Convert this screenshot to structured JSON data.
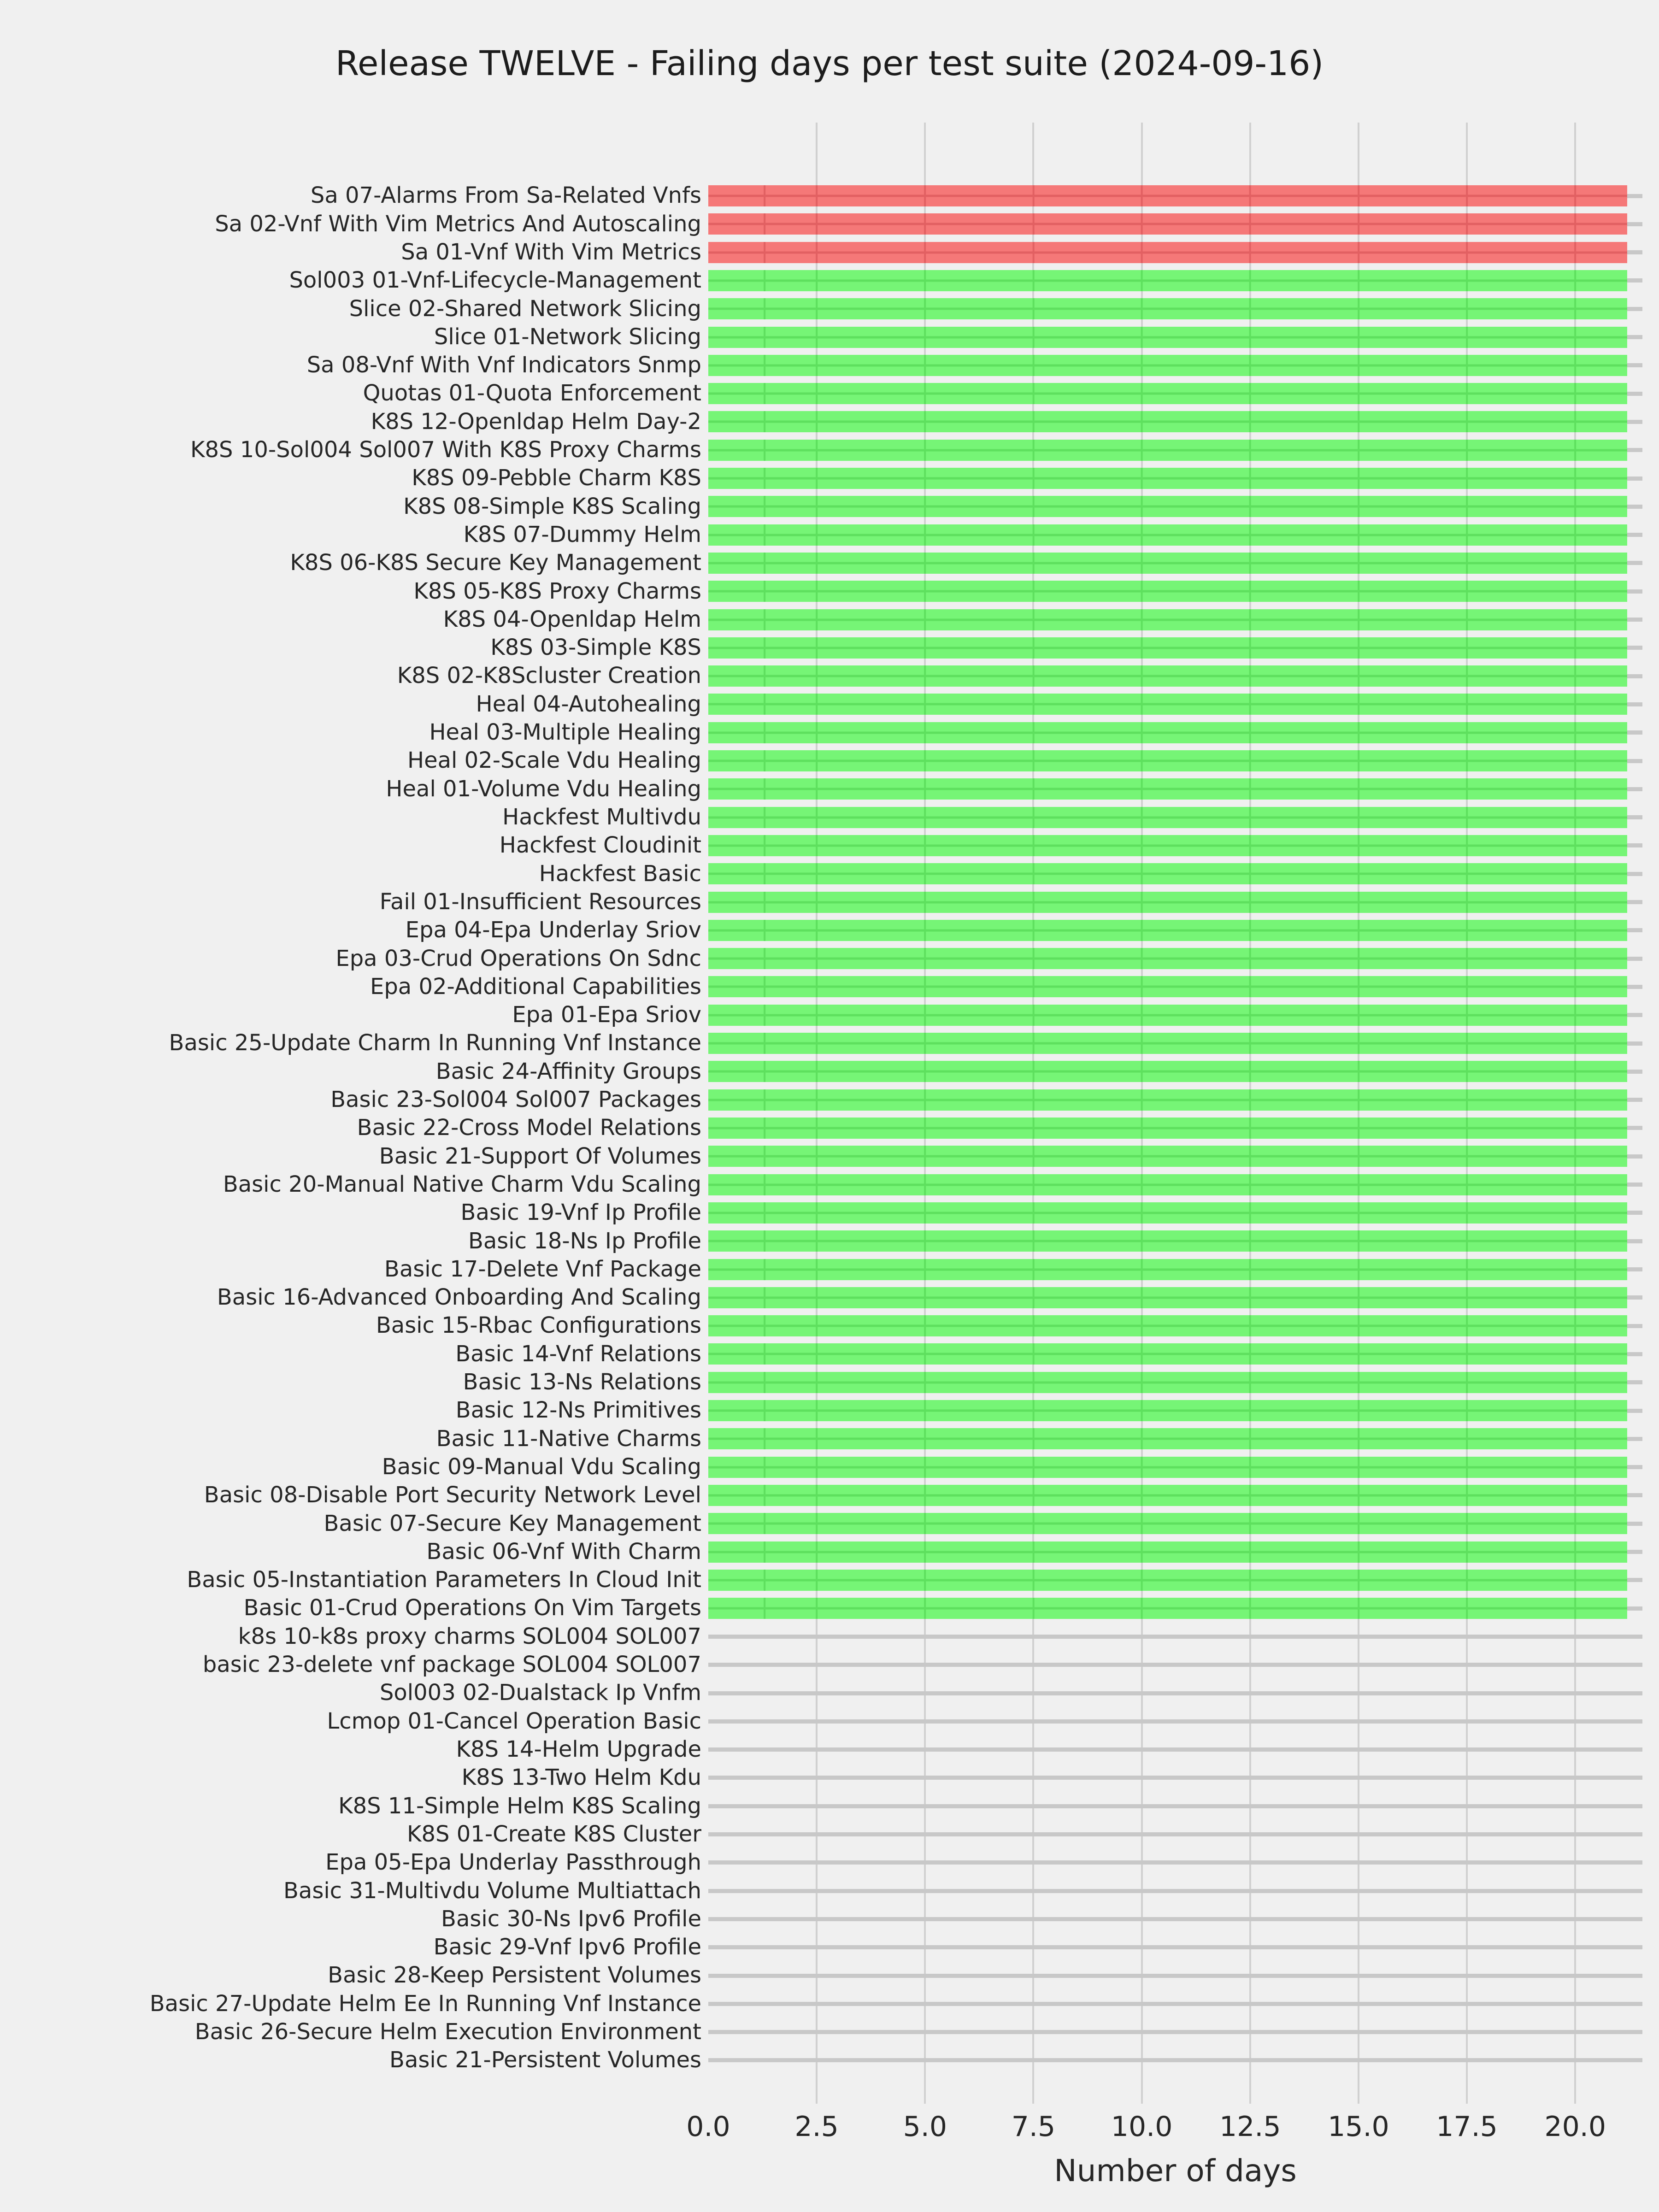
{
  "chart_data": {
    "type": "bar",
    "orientation": "horizontal",
    "title": "Release TWELVE - Failing days per test suite (2024-09-16)",
    "xlabel": "Number of days",
    "ylabel": "",
    "xlim": [
      0,
      21.55
    ],
    "xticks": [
      0.0,
      2.5,
      5.0,
      7.5,
      10.0,
      12.5,
      15.0,
      17.5,
      20.0
    ],
    "xtick_labels": [
      "0.0",
      "2.5",
      "5.0",
      "7.5",
      "10.0",
      "12.5",
      "15.0",
      "17.5",
      "20.0"
    ],
    "grid": true,
    "legend": "none",
    "colors": {
      "failing_bar": "#f57878",
      "failing_bar_edge": "#e26062",
      "passing_bar": "#76f576",
      "passing_bar_edge": "#5ee05e",
      "background": "#f0f0f0",
      "vertical_gridline": "#d0d0d0",
      "horizontal_gridline": "#c8c8c8",
      "text": "#262626",
      "title_text": "#1c1c1c"
    },
    "suites": [
      {
        "label": "Sa 07-Alarms From Sa-Related Vnfs",
        "days": 21.2,
        "color": "red"
      },
      {
        "label": "Sa 02-Vnf With Vim Metrics And Autoscaling",
        "days": 21.2,
        "color": "red"
      },
      {
        "label": "Sa 01-Vnf With Vim Metrics",
        "days": 21.2,
        "color": "red"
      },
      {
        "label": "Sol003 01-Vnf-Lifecycle-Management",
        "days": 21.2,
        "color": "green"
      },
      {
        "label": "Slice 02-Shared Network Slicing",
        "days": 21.2,
        "color": "green"
      },
      {
        "label": "Slice 01-Network Slicing",
        "days": 21.2,
        "color": "green"
      },
      {
        "label": "Sa 08-Vnf With Vnf Indicators Snmp",
        "days": 21.2,
        "color": "green"
      },
      {
        "label": "Quotas 01-Quota Enforcement",
        "days": 21.2,
        "color": "green"
      },
      {
        "label": "K8S 12-Openldap Helm Day-2",
        "days": 21.2,
        "color": "green"
      },
      {
        "label": "K8S 10-Sol004 Sol007 With K8S Proxy Charms",
        "days": 21.2,
        "color": "green"
      },
      {
        "label": "K8S 09-Pebble Charm K8S",
        "days": 21.2,
        "color": "green"
      },
      {
        "label": "K8S 08-Simple K8S Scaling",
        "days": 21.2,
        "color": "green"
      },
      {
        "label": "K8S 07-Dummy Helm",
        "days": 21.2,
        "color": "green"
      },
      {
        "label": "K8S 06-K8S Secure Key Management",
        "days": 21.2,
        "color": "green"
      },
      {
        "label": "K8S 05-K8S Proxy Charms",
        "days": 21.2,
        "color": "green"
      },
      {
        "label": "K8S 04-Openldap Helm",
        "days": 21.2,
        "color": "green"
      },
      {
        "label": "K8S 03-Simple K8S",
        "days": 21.2,
        "color": "green"
      },
      {
        "label": "K8S 02-K8Scluster Creation",
        "days": 21.2,
        "color": "green"
      },
      {
        "label": "Heal 04-Autohealing",
        "days": 21.2,
        "color": "green"
      },
      {
        "label": "Heal 03-Multiple Healing",
        "days": 21.2,
        "color": "green"
      },
      {
        "label": "Heal 02-Scale Vdu Healing",
        "days": 21.2,
        "color": "green"
      },
      {
        "label": "Heal 01-Volume Vdu Healing",
        "days": 21.2,
        "color": "green"
      },
      {
        "label": "Hackfest Multivdu",
        "days": 21.2,
        "color": "green"
      },
      {
        "label": "Hackfest Cloudinit",
        "days": 21.2,
        "color": "green"
      },
      {
        "label": "Hackfest Basic",
        "days": 21.2,
        "color": "green"
      },
      {
        "label": "Fail 01-Insufficient Resources",
        "days": 21.2,
        "color": "green"
      },
      {
        "label": "Epa 04-Epa Underlay Sriov",
        "days": 21.2,
        "color": "green"
      },
      {
        "label": "Epa 03-Crud Operations On Sdnc",
        "days": 21.2,
        "color": "green"
      },
      {
        "label": "Epa 02-Additional Capabilities",
        "days": 21.2,
        "color": "green"
      },
      {
        "label": "Epa 01-Epa Sriov",
        "days": 21.2,
        "color": "green"
      },
      {
        "label": "Basic 25-Update Charm In Running Vnf Instance",
        "days": 21.2,
        "color": "green"
      },
      {
        "label": "Basic 24-Affinity Groups",
        "days": 21.2,
        "color": "green"
      },
      {
        "label": "Basic 23-Sol004 Sol007 Packages",
        "days": 21.2,
        "color": "green"
      },
      {
        "label": "Basic 22-Cross Model Relations",
        "days": 21.2,
        "color": "green"
      },
      {
        "label": "Basic 21-Support Of Volumes",
        "days": 21.2,
        "color": "green"
      },
      {
        "label": "Basic 20-Manual Native Charm Vdu Scaling",
        "days": 21.2,
        "color": "green"
      },
      {
        "label": "Basic 19-Vnf Ip Profile",
        "days": 21.2,
        "color": "green"
      },
      {
        "label": "Basic 18-Ns Ip Profile",
        "days": 21.2,
        "color": "green"
      },
      {
        "label": "Basic 17-Delete Vnf Package",
        "days": 21.2,
        "color": "green"
      },
      {
        "label": "Basic 16-Advanced Onboarding And Scaling",
        "days": 21.2,
        "color": "green"
      },
      {
        "label": "Basic 15-Rbac Configurations",
        "days": 21.2,
        "color": "green"
      },
      {
        "label": "Basic 14-Vnf Relations",
        "days": 21.2,
        "color": "green"
      },
      {
        "label": "Basic 13-Ns Relations",
        "days": 21.2,
        "color": "green"
      },
      {
        "label": "Basic 12-Ns Primitives",
        "days": 21.2,
        "color": "green"
      },
      {
        "label": "Basic 11-Native Charms",
        "days": 21.2,
        "color": "green"
      },
      {
        "label": "Basic 09-Manual Vdu Scaling",
        "days": 21.2,
        "color": "green"
      },
      {
        "label": "Basic 08-Disable Port Security Network Level",
        "days": 21.2,
        "color": "green"
      },
      {
        "label": "Basic 07-Secure Key Management",
        "days": 21.2,
        "color": "green"
      },
      {
        "label": "Basic 06-Vnf With Charm",
        "days": 21.2,
        "color": "green"
      },
      {
        "label": "Basic 05-Instantiation Parameters In Cloud Init",
        "days": 21.2,
        "color": "green"
      },
      {
        "label": "Basic 01-Crud Operations On Vim Targets",
        "days": 21.2,
        "color": "green"
      },
      {
        "label": "k8s 10-k8s proxy charms SOL004 SOL007",
        "days": 0,
        "color": "none"
      },
      {
        "label": "basic 23-delete vnf package SOL004 SOL007",
        "days": 0,
        "color": "none"
      },
      {
        "label": "Sol003 02-Dualstack Ip Vnfm",
        "days": 0,
        "color": "none"
      },
      {
        "label": "Lcmop 01-Cancel Operation Basic",
        "days": 0,
        "color": "none"
      },
      {
        "label": "K8S 14-Helm Upgrade",
        "days": 0,
        "color": "none"
      },
      {
        "label": "K8S 13-Two Helm Kdu",
        "days": 0,
        "color": "none"
      },
      {
        "label": "K8S 11-Simple Helm K8S Scaling",
        "days": 0,
        "color": "none"
      },
      {
        "label": "K8S 01-Create K8S Cluster",
        "days": 0,
        "color": "none"
      },
      {
        "label": "Epa 05-Epa Underlay Passthrough",
        "days": 0,
        "color": "none"
      },
      {
        "label": "Basic 31-Multivdu Volume Multiattach",
        "days": 0,
        "color": "none"
      },
      {
        "label": "Basic 30-Ns Ipv6 Profile",
        "days": 0,
        "color": "none"
      },
      {
        "label": "Basic 29-Vnf Ipv6 Profile",
        "days": 0,
        "color": "none"
      },
      {
        "label": "Basic 28-Keep Persistent Volumes",
        "days": 0,
        "color": "none"
      },
      {
        "label": "Basic 27-Update Helm Ee In Running Vnf Instance",
        "days": 0,
        "color": "none"
      },
      {
        "label": "Basic 26-Secure Helm Execution Environment",
        "days": 0,
        "color": "none"
      },
      {
        "label": "Basic 21-Persistent Volumes",
        "days": 0,
        "color": "none"
      }
    ]
  }
}
